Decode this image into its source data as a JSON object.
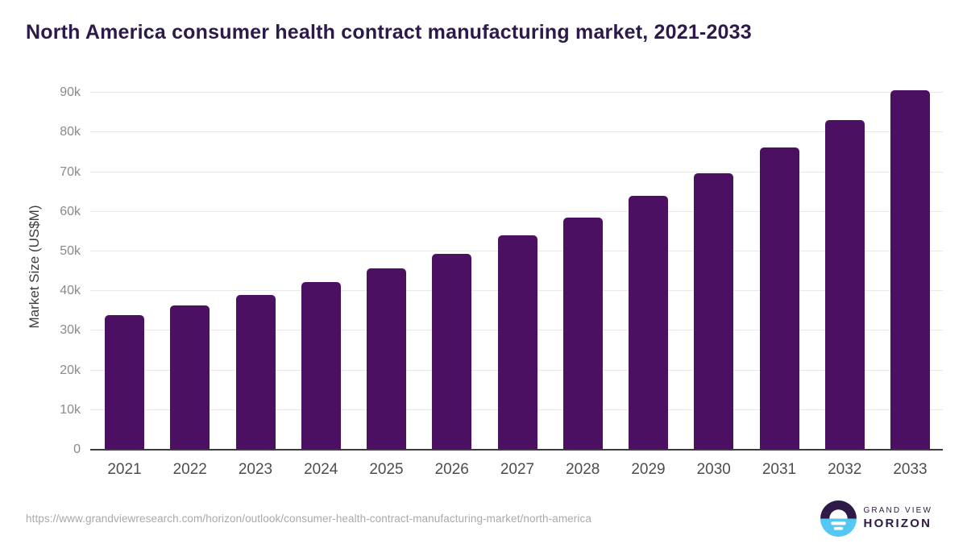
{
  "page": {
    "title": "North America consumer health contract manufacturing market, 2021-2033",
    "source_url": "https://www.grandviewresearch.com/horizon/outlook/consumer-health-contract-manufacturing-market/north-america"
  },
  "logo": {
    "line1": "GRAND VIEW",
    "line2": "HORIZON",
    "icon": "horizon-sunset-icon"
  },
  "colors": {
    "bar": "#4b1062",
    "title": "#2b1a4a",
    "grid": "#e9e9e9",
    "axis_line": "#3c3c3c",
    "tick_label": "#8a8a8a",
    "year_label": "#4d4d4d",
    "axis_title": "#3d3d3d",
    "url_text": "#a9a9a9",
    "logo_dark": "#2e1a47",
    "logo_blue": "#56c7f3"
  },
  "chart_data": {
    "type": "bar",
    "title": "North America consumer health contract manufacturing market, 2021-2033",
    "xlabel": "",
    "ylabel": "Market Size (US$M)",
    "unit": "US$M",
    "categories": [
      "2021",
      "2022",
      "2023",
      "2024",
      "2025",
      "2026",
      "2027",
      "2028",
      "2029",
      "2030",
      "2031",
      "2032",
      "2033"
    ],
    "values": [
      33900,
      36300,
      39000,
      42200,
      45700,
      49500,
      54000,
      58600,
      64100,
      69800,
      76300,
      83200,
      90700
    ],
    "ylim": [
      0,
      92000
    ],
    "yticks_values": [
      0,
      10000,
      20000,
      30000,
      40000,
      50000,
      60000,
      70000,
      80000,
      90000
    ],
    "yticks_labels": [
      "0",
      "10k",
      "20k",
      "30k",
      "40k",
      "50k",
      "60k",
      "70k",
      "80k",
      "90k"
    ],
    "grid": "horizontal",
    "legend": "none",
    "bar_color": "#4b1062"
  }
}
